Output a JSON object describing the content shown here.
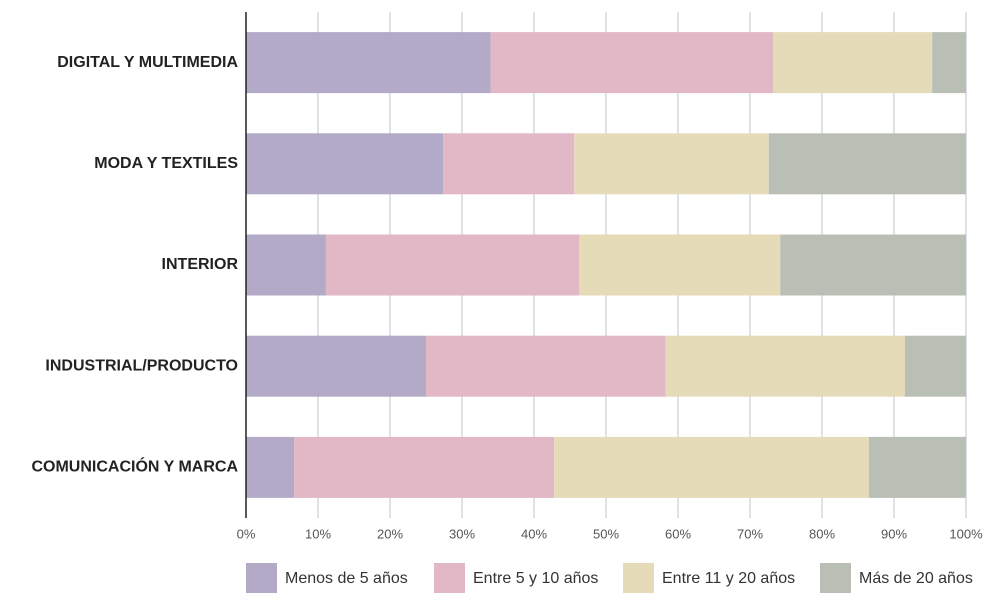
{
  "chart_data": {
    "type": "stacked-bar-horizontal",
    "categories": [
      "DIGITAL Y MULTIMEDIA",
      "MODA Y TEXTILES",
      "INTERIOR",
      "INDUSTRIAL/PRODUCTO",
      "COMUNICACIÓN Y MARCA"
    ],
    "series": [
      {
        "name": "Menos de 5 años",
        "color": "#b2aac6",
        "values": [
          34.0,
          27.4,
          11.1,
          25.0,
          6.7
        ]
      },
      {
        "name": "Entre 5 y 10 años",
        "color": "#e2b7c6",
        "values": [
          39.2,
          18.2,
          35.2,
          33.3,
          36.1
        ]
      },
      {
        "name": "Entre 11 y 20 años",
        "color": "#e6dbb9",
        "values": [
          22.1,
          27.0,
          27.9,
          33.2,
          43.7
        ]
      },
      {
        "name": "Más de 20 años",
        "color": "#b9bfb5",
        "values": [
          4.7,
          27.4,
          25.8,
          8.5,
          13.5
        ]
      }
    ],
    "xlim": [
      0,
      100
    ],
    "xticks": [
      {
        "value": 0,
        "label": "0%"
      },
      {
        "value": 10,
        "label": "10%"
      },
      {
        "value": 20,
        "label": "20%"
      },
      {
        "value": 30,
        "label": "30%"
      },
      {
        "value": 40,
        "label": "40%"
      },
      {
        "value": 50,
        "label": "50%"
      },
      {
        "value": 60,
        "label": "60%"
      },
      {
        "value": 70,
        "label": "70%"
      },
      {
        "value": 80,
        "label": "80%"
      },
      {
        "value": 90,
        "label": "90%"
      },
      {
        "value": 100,
        "label": "100%"
      }
    ],
    "grid": true,
    "legend": "bottom"
  }
}
